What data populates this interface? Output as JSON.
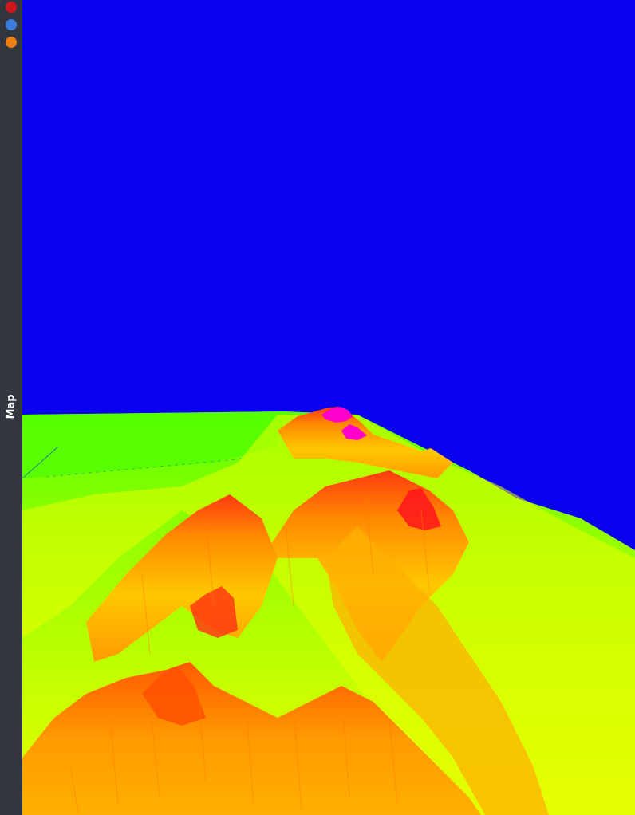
{
  "sidebar": {
    "buttons": [
      {
        "name": "red-dot",
        "color": "#d0171b"
      },
      {
        "name": "blue-dot",
        "color": "#3b7ddd"
      },
      {
        "name": "orange-dot",
        "color": "#f07e12"
      }
    ],
    "tab_label": "Map"
  },
  "viewport": {
    "sky_color": "#0a00f0",
    "low_color": "#4cff00",
    "mid_color": "#ffff00",
    "high_color": "#ff8800",
    "peak_color": "#ff1a1a",
    "summit_color": "#ff00cc"
  }
}
